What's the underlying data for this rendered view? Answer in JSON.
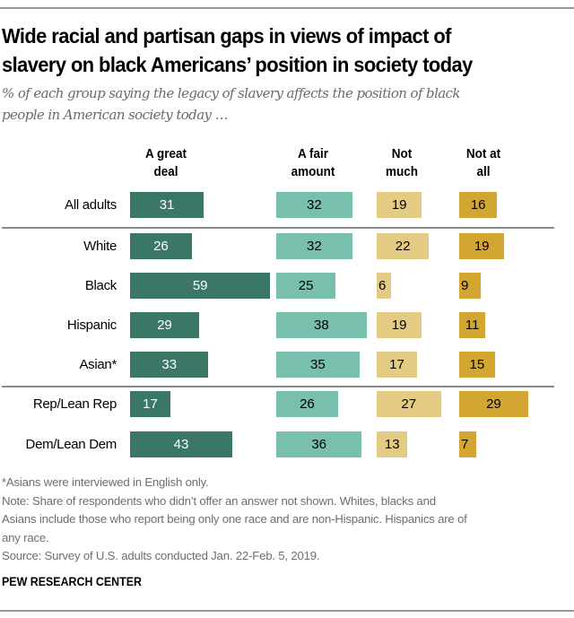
{
  "header": {
    "title_line1": "Wide racial and partisan gaps in views of impact of",
    "title_line2": "slavery on black Americans’ position in society today",
    "subtitle_line1": "% of each group saying the legacy of slavery affects the position of black",
    "subtitle_line2": "people in American society today …"
  },
  "chart_data": {
    "type": "bar",
    "orientation": "horizontal",
    "stacked": false,
    "title": "Wide racial and partisan gaps in views of impact of slavery on black Americans’ position in society today",
    "subtitle": "% of each group saying the legacy of slavery affects the position of black people in American society today …",
    "unit": "%",
    "categories": [
      "All adults",
      "White",
      "Black",
      "Hispanic",
      "Asian*",
      "Rep/Lean Rep",
      "Dem/Lean Dem"
    ],
    "groups": [
      [
        "All adults"
      ],
      [
        "White",
        "Black",
        "Hispanic",
        "Asian*"
      ],
      [
        "Rep/Lean Rep",
        "Dem/Lean Dem"
      ]
    ],
    "series": [
      {
        "name": "A great deal",
        "header_lines": [
          "A great",
          "deal"
        ],
        "color": "#3a7767",
        "label_color": "#ffffff",
        "values": [
          31,
          26,
          59,
          29,
          33,
          17,
          43
        ]
      },
      {
        "name": "A fair amount",
        "header_lines": [
          "A fair",
          "amount"
        ],
        "color": "#78bfae",
        "label_color": "#000000",
        "values": [
          32,
          32,
          25,
          38,
          35,
          26,
          36
        ]
      },
      {
        "name": "Not much",
        "header_lines": [
          "Not",
          "much"
        ],
        "color": "#e3cb83",
        "label_color": "#000000",
        "values": [
          19,
          22,
          6,
          19,
          17,
          27,
          13
        ]
      },
      {
        "name": "Not at all",
        "header_lines": [
          "Not at",
          "all"
        ],
        "color": "#d2a630",
        "label_color": "#000000",
        "values": [
          16,
          19,
          9,
          11,
          15,
          29,
          7
        ]
      }
    ],
    "xlabel": "",
    "ylabel": "",
    "grid": false,
    "legend": "column headers at top"
  },
  "footer": {
    "notes": [
      "*Asians were interviewed in English only.",
      "Note: Share of respondents who didn’t offer an answer not shown. Whites, blacks and",
      "Asians include those who report being only one race and are non-Hispanic. Hispanics are of",
      "any race.",
      "Source: Survey of U.S. adults conducted Jan. 22-Feb. 5, 2019."
    ],
    "brand": "PEW RESEARCH CENTER"
  }
}
